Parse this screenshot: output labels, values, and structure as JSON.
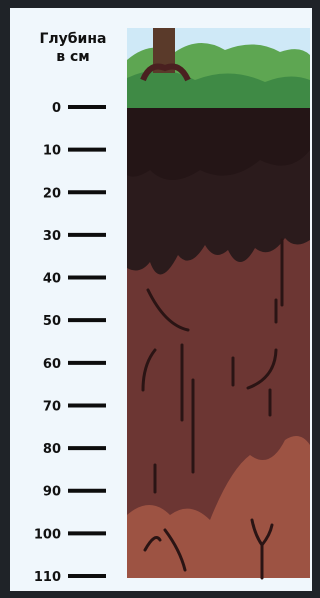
{
  "header": {
    "title_lines": [
      "Глубина",
      "в см"
    ]
  },
  "scale": {
    "ticks": [
      0,
      10,
      20,
      30,
      40,
      50,
      60,
      70,
      80,
      90,
      100,
      110
    ]
  }
}
